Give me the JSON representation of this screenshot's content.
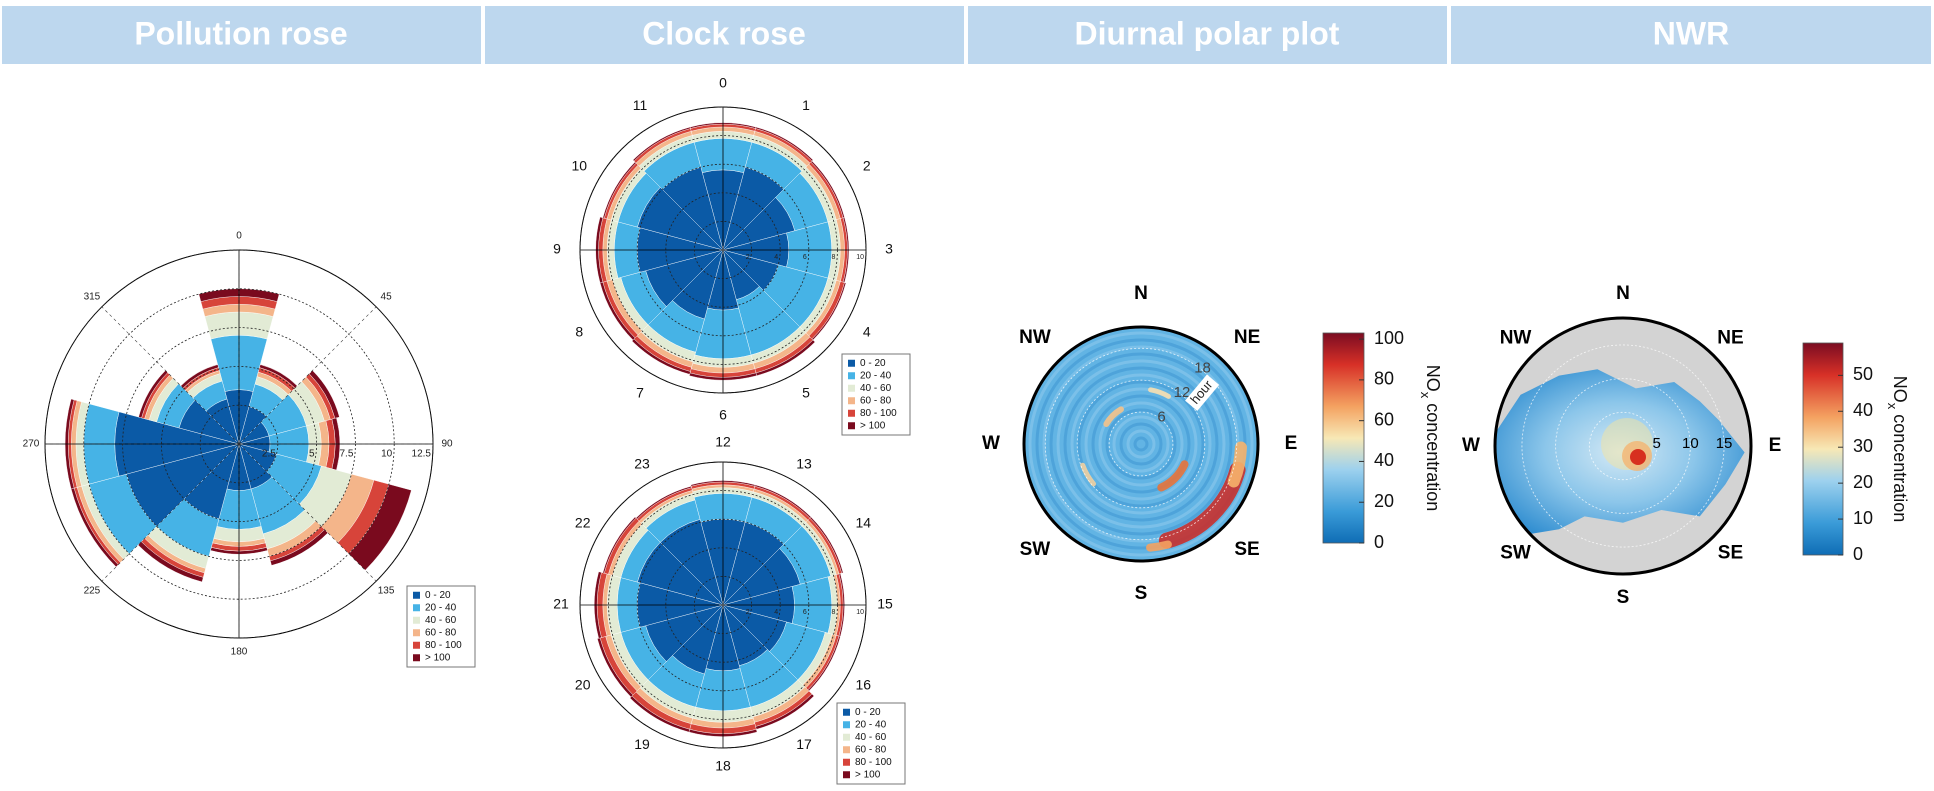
{
  "headers": [
    "Pollution rose",
    "Clock rose",
    "Diurnal polar plot",
    "NWR"
  ],
  "chart_data": [
    {
      "type": "windrose",
      "x": [
        0,
        30,
        60,
        90,
        120,
        150,
        180,
        210,
        240,
        270,
        300,
        330
      ],
      "xlim": [
        0,
        360
      ],
      "xticks": [
        0,
        45,
        90,
        135,
        180,
        225,
        270,
        315
      ],
      "rlim": [
        0,
        12.5
      ],
      "rticks": [
        2.5,
        5,
        7.5,
        10,
        12.5
      ],
      "series": [
        {
          "name": "0 - 20",
          "color": "#0b5aa6",
          "values": [
            3.5,
            2.5,
            2,
            2,
            2.5,
            3,
            3,
            5,
            7.5,
            8,
            4,
            3
          ]
        },
        {
          "name": "20 - 40",
          "color": "#46b3e6",
          "values": [
            3.5,
            1.5,
            2.5,
            2.5,
            3,
            3,
            2.5,
            2.5,
            2.5,
            2,
            1.5,
            1.2
          ]
        },
        {
          "name": "40 - 60",
          "color": "#e2ebd5",
          "values": [
            1.5,
            0.5,
            1.2,
            0.8,
            2,
            1,
            0.8,
            0.8,
            0.5,
            0.5,
            0.5,
            0.5
          ]
        },
        {
          "name": "60 - 80",
          "color": "#f4b58a",
          "values": [
            0.5,
            0.3,
            0.4,
            0.5,
            1.5,
            0.5,
            0.3,
            0.3,
            0.3,
            0.3,
            0.3,
            0.2
          ]
        },
        {
          "name": "80 - 100",
          "color": "#d7443a",
          "values": [
            0.5,
            0.3,
            0.3,
            0.4,
            1,
            0.3,
            0.3,
            0.3,
            0.2,
            0.2,
            0.2,
            0.2
          ]
        },
        {
          "name": "> 100",
          "color": "#7a0a1e",
          "values": [
            0.5,
            0.2,
            0.3,
            0.3,
            1.5,
            0.3,
            0.2,
            0.3,
            0.2,
            0.2,
            0.2,
            0.2
          ]
        }
      ]
    },
    {
      "type": "windrose",
      "categories": [
        "0",
        "1",
        "2",
        "3",
        "4",
        "5",
        "6",
        "7",
        "8",
        "9",
        "10",
        "11"
      ],
      "rlim": [
        0,
        10
      ],
      "rticks": [
        2,
        4,
        6,
        8,
        10
      ],
      "series": [
        {
          "name": "0 - 20",
          "color": "#0b5aa6",
          "values": [
            5.6,
            6,
            5.2,
            4.6,
            4,
            3.6,
            4.2,
            5,
            5.6,
            6,
            6.2,
            6
          ]
        },
        {
          "name": "20 - 40",
          "color": "#46b3e6",
          "values": [
            2.2,
            1.8,
            2.4,
            3,
            3.6,
            4,
            3.4,
            2.4,
            1.8,
            1.6,
            1.4,
            1.8
          ]
        },
        {
          "name": "40 - 60",
          "color": "#e2ebd5",
          "values": [
            0.5,
            0.5,
            0.6,
            0.6,
            0.6,
            0.6,
            0.6,
            0.7,
            0.6,
            0.5,
            0.5,
            0.5
          ]
        },
        {
          "name": "60 - 80",
          "color": "#f4b58a",
          "values": [
            0.3,
            0.3,
            0.3,
            0.3,
            0.3,
            0.4,
            0.4,
            0.4,
            0.4,
            0.3,
            0.3,
            0.3
          ]
        },
        {
          "name": "80 - 100",
          "color": "#d7443a",
          "values": [
            0.2,
            0.2,
            0.2,
            0.2,
            0.3,
            0.3,
            0.3,
            0.3,
            0.3,
            0.3,
            0.2,
            0.2
          ]
        },
        {
          "name": "> 100",
          "color": "#7a0a1e",
          "values": [
            0.1,
            0.1,
            0.1,
            0.1,
            0.1,
            0.2,
            0.2,
            0.2,
            0.2,
            0.2,
            0.1,
            0.1
          ]
        }
      ]
    },
    {
      "type": "windrose",
      "categories": [
        "12",
        "13",
        "14",
        "15",
        "16",
        "17",
        "18",
        "19",
        "20",
        "21",
        "22",
        "23"
      ],
      "rlim": [
        0,
        10
      ],
      "rticks": [
        2,
        4,
        6,
        8,
        10
      ],
      "series": [
        {
          "name": "0 - 20",
          "color": "#0b5aa6",
          "values": [
            6,
            6,
            5.6,
            5,
            4.6,
            4.4,
            4.6,
            5,
            5.6,
            6,
            6.2,
            6.2
          ]
        },
        {
          "name": "20 - 40",
          "color": "#46b3e6",
          "values": [
            1.8,
            1.8,
            2.2,
            2.6,
            2.8,
            3,
            2.8,
            2.4,
            1.8,
            1.4,
            1.2,
            1.4
          ]
        },
        {
          "name": "40 - 60",
          "color": "#e2ebd5",
          "values": [
            0.4,
            0.4,
            0.4,
            0.4,
            0.5,
            0.7,
            0.8,
            0.8,
            0.7,
            0.7,
            0.6,
            0.5
          ]
        },
        {
          "name": "60 - 80",
          "color": "#f4b58a",
          "values": [
            0.2,
            0.2,
            0.2,
            0.2,
            0.3,
            0.4,
            0.4,
            0.4,
            0.4,
            0.3,
            0.3,
            0.2
          ]
        },
        {
          "name": "80 - 100",
          "color": "#d7443a",
          "values": [
            0.2,
            0.2,
            0.2,
            0.2,
            0.2,
            0.3,
            0.4,
            0.4,
            0.4,
            0.4,
            0.3,
            0.2
          ]
        },
        {
          "name": "> 100",
          "color": "#7a0a1e",
          "values": [
            0.1,
            0.1,
            0.1,
            0.1,
            0.1,
            0.2,
            0.2,
            0.2,
            0.2,
            0.2,
            0.1,
            0.1
          ]
        }
      ]
    },
    {
      "type": "polarheat",
      "directions": [
        "N",
        "NE",
        "E",
        "SE",
        "S",
        "SW",
        "W",
        "NW"
      ],
      "rlim": [
        0,
        22
      ],
      "rticks": [
        6,
        12,
        18
      ],
      "r_label": "hour",
      "clim": [
        0,
        103
      ],
      "cticks": [
        0,
        20,
        40,
        60,
        80,
        100
      ],
      "colorbar_label": [
        "NO",
        "x",
        " concentration"
      ]
    },
    {
      "type": "polarheat",
      "directions": [
        "N",
        "NE",
        "E",
        "SE",
        "S",
        "SW",
        "W",
        "NW"
      ],
      "rlim": [
        0,
        19
      ],
      "rticks": [
        5,
        10,
        15
      ],
      "clim": [
        0,
        59
      ],
      "cticks": [
        0,
        10,
        20,
        30,
        40,
        50
      ],
      "colorbar_label": [
        "NO",
        "x",
        " concentration"
      ]
    }
  ]
}
